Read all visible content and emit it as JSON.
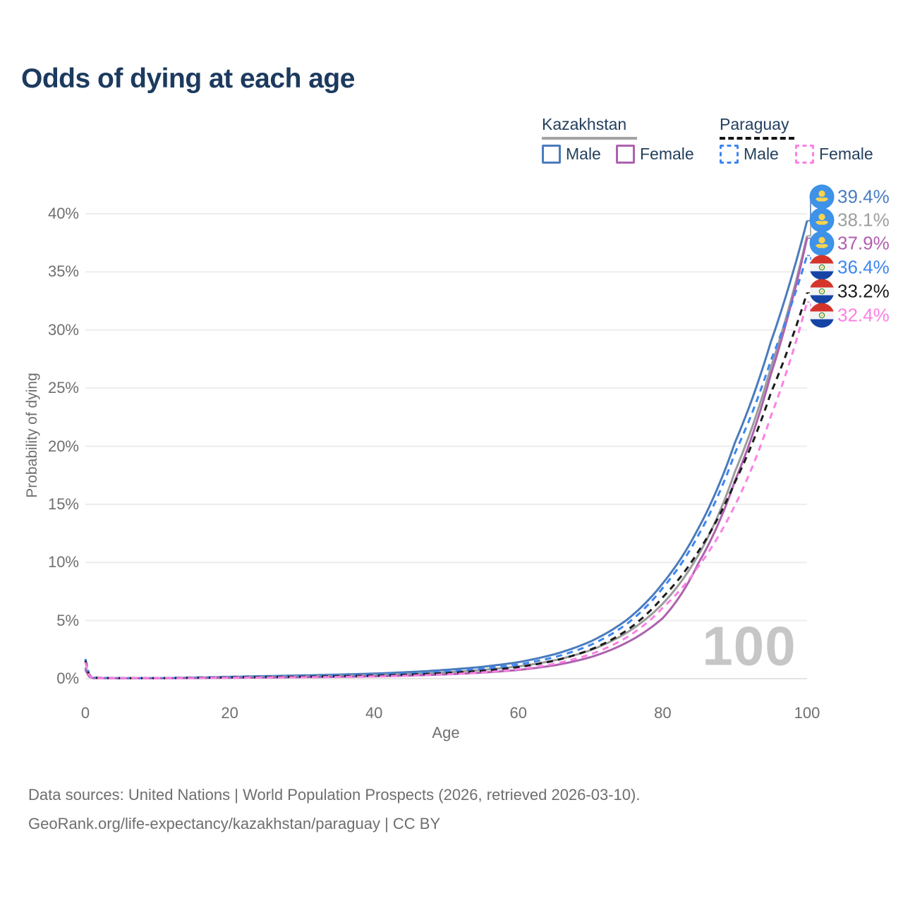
{
  "title": "Odds of dying at each age",
  "watermark": "100",
  "legend": {
    "groups": [
      {
        "label": "Kazakhstan",
        "line_style": "solid",
        "underline_color": "#a3a3a3",
        "items": [
          {
            "label": "Male",
            "color": "#4a7bbc",
            "line_style": "solid"
          },
          {
            "label": "Female",
            "color": "#ad62af",
            "line_style": "solid"
          }
        ]
      },
      {
        "label": "Paraguay",
        "line_style": "dashed",
        "underline_color": "#151515",
        "items": [
          {
            "label": "Male",
            "color": "#3d86f0",
            "line_style": "dashed"
          },
          {
            "label": "Female",
            "color": "#fb80e3",
            "line_style": "dashed"
          }
        ]
      }
    ]
  },
  "chart_data": {
    "type": "line",
    "title": "Odds of dying at each age",
    "xlabel": "Age",
    "ylabel": "Probability of dying",
    "xlim": [
      0,
      100
    ],
    "ylim_percent": [
      0,
      41
    ],
    "x_ticks": [
      0,
      20,
      40,
      60,
      80,
      100
    ],
    "y_ticks_percent": [
      0,
      5,
      10,
      15,
      20,
      25,
      30,
      35,
      40
    ],
    "grid": "horizontal",
    "legend_position": "top-right",
    "ages": [
      0,
      1,
      5,
      10,
      15,
      20,
      25,
      30,
      35,
      40,
      45,
      50,
      55,
      60,
      65,
      70,
      75,
      80,
      85,
      90,
      95,
      100
    ],
    "series": [
      {
        "name": "Kazakhstan Male",
        "country": "kz",
        "sex": "male",
        "style": "solid",
        "color": "#4a7bbc",
        "end_label": "39.4%",
        "label_color": "#4a7cc0",
        "values_percent": [
          0.95,
          0.07,
          0.04,
          0.04,
          0.09,
          0.16,
          0.22,
          0.28,
          0.35,
          0.44,
          0.57,
          0.76,
          1.02,
          1.42,
          2.1,
          3.2,
          5.05,
          8.2,
          13.0,
          20.3,
          29.0,
          39.4
        ]
      },
      {
        "name": "Kazakhstan Both sexes",
        "country": "kz",
        "sex": "both",
        "style": "solid",
        "color": "#9c9c9c",
        "end_label": "38.1%",
        "label_color": "#9e9e9e",
        "values_percent": [
          0.85,
          0.06,
          0.035,
          0.035,
          0.07,
          0.12,
          0.16,
          0.2,
          0.25,
          0.31,
          0.41,
          0.55,
          0.75,
          1.05,
          1.58,
          2.45,
          3.95,
          6.45,
          10.7,
          17.8,
          26.8,
          38.1
        ]
      },
      {
        "name": "Kazakhstan Female",
        "country": "kz",
        "sex": "female",
        "style": "solid",
        "color": "#ad62af",
        "end_label": "37.9%",
        "label_color": "#b25daf",
        "values_percent": [
          0.75,
          0.05,
          0.03,
          0.03,
          0.05,
          0.08,
          0.1,
          0.13,
          0.16,
          0.2,
          0.27,
          0.37,
          0.52,
          0.75,
          1.15,
          1.85,
          3.1,
          5.2,
          10.0,
          17.0,
          26.2,
          37.9
        ]
      },
      {
        "name": "Paraguay Male",
        "country": "py",
        "sex": "male",
        "style": "dashed",
        "color": "#3d86f0",
        "end_label": "36.4%",
        "label_color": "#3d86f0",
        "values_percent": [
          1.7,
          0.09,
          0.05,
          0.05,
          0.1,
          0.14,
          0.17,
          0.21,
          0.26,
          0.33,
          0.44,
          0.6,
          0.85,
          1.22,
          1.85,
          2.9,
          4.7,
          7.8,
          12.4,
          19.4,
          27.4,
          36.4
        ]
      },
      {
        "name": "Paraguay Both sexes",
        "country": "py",
        "sex": "both",
        "style": "dashed",
        "color": "#1c1c1c",
        "end_label": "33.2%",
        "label_color": "#1a1a1a",
        "values_percent": [
          1.55,
          0.08,
          0.045,
          0.045,
          0.08,
          0.11,
          0.14,
          0.17,
          0.21,
          0.26,
          0.35,
          0.48,
          0.68,
          1.0,
          1.55,
          2.5,
          4.15,
          7.0,
          11.0,
          16.9,
          24.6,
          33.2
        ]
      },
      {
        "name": "Paraguay Female",
        "country": "py",
        "sex": "female",
        "style": "dashed",
        "color": "#fb80e3",
        "end_label": "32.4%",
        "label_color": "#fb80e3",
        "values_percent": [
          1.4,
          0.07,
          0.04,
          0.04,
          0.06,
          0.08,
          0.1,
          0.12,
          0.15,
          0.19,
          0.26,
          0.37,
          0.54,
          0.8,
          1.28,
          2.1,
          3.55,
          6.1,
          9.7,
          14.9,
          22.6,
          32.4
        ]
      }
    ]
  },
  "footer": {
    "line1": "Data sources: United Nations | World Population Prospects (2026, retrieved 2026-03-10).",
    "line2": "GeoRank.org/life-expectancy/kazakhstan/paraguay | CC BY"
  }
}
